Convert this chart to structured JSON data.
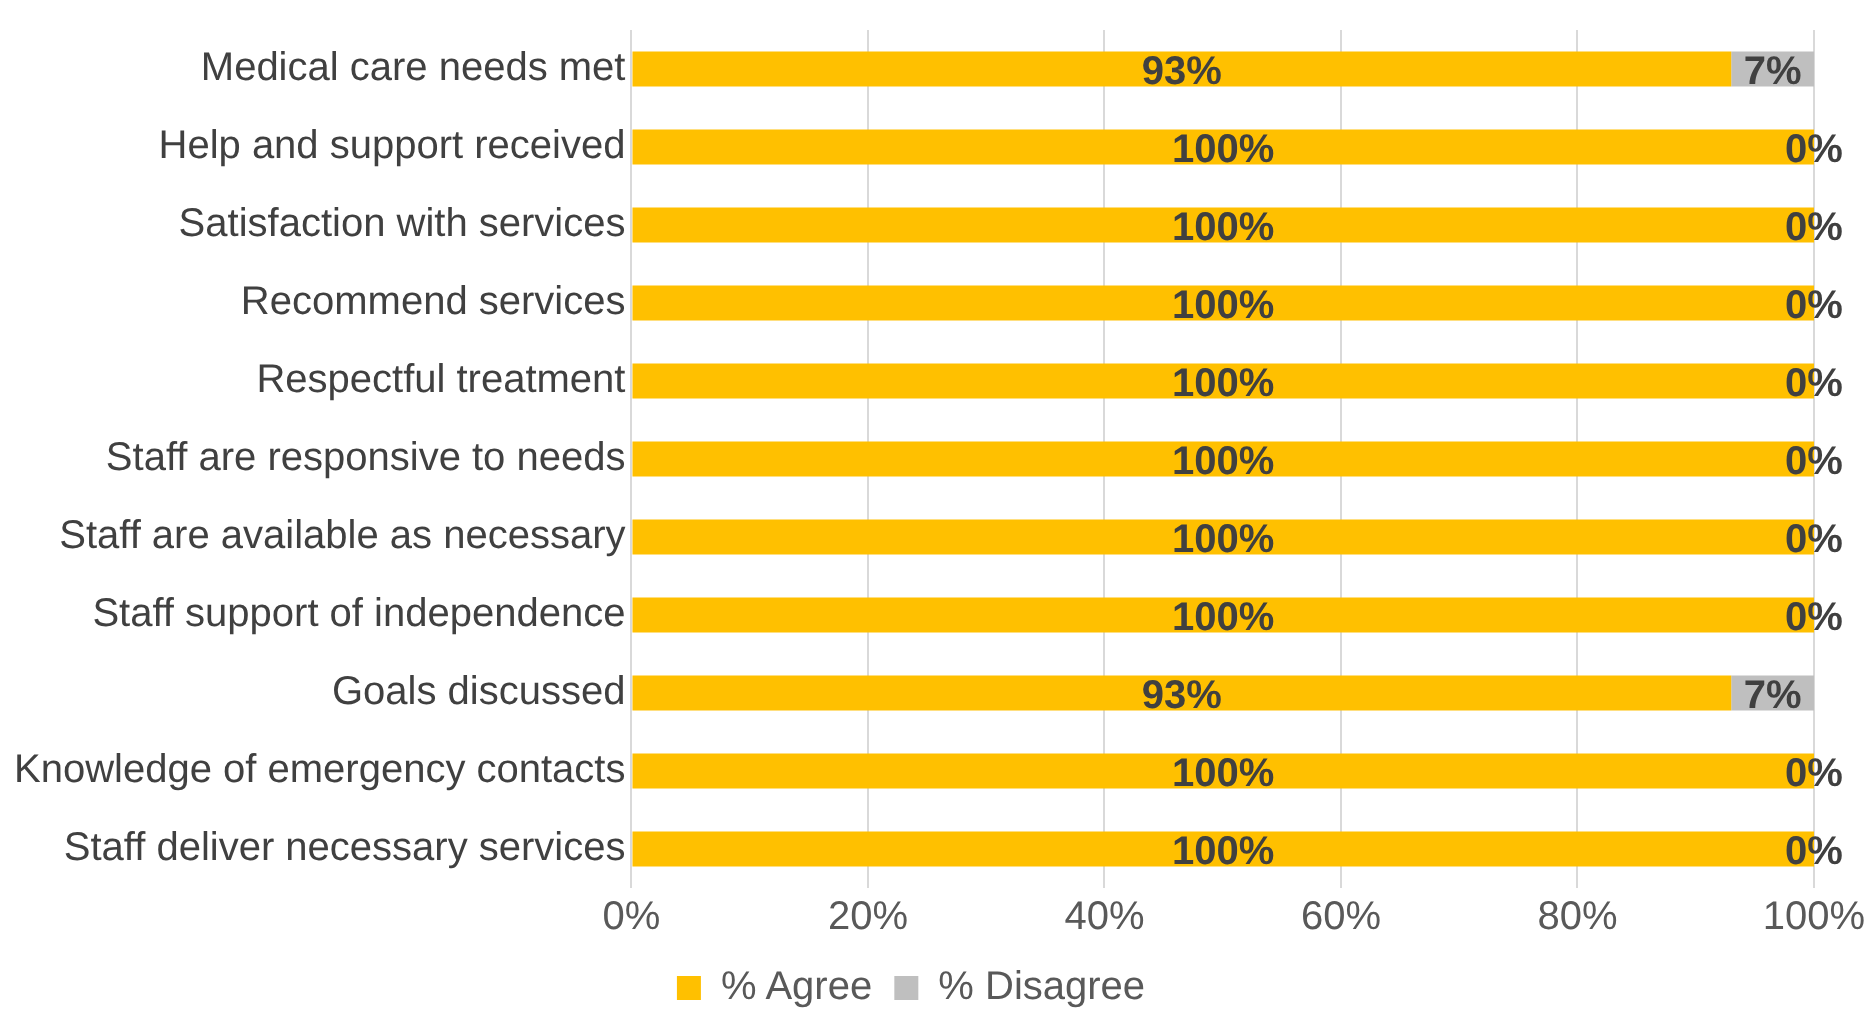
{
  "chart_data": {
    "type": "bar",
    "orientation": "horizontal",
    "stacked": true,
    "categories": [
      "Medical care needs met",
      "Help and support received",
      "Satisfaction with services",
      "Recommend services",
      "Respectful treatment",
      "Staff are responsive to needs",
      "Staff are available as necessary",
      "Staff support of independence",
      "Goals discussed",
      "Knowledge of emergency contacts",
      "Staff deliver necessary services"
    ],
    "series": [
      {
        "name": "% Agree",
        "color": "#ffc000",
        "values": [
          93,
          100,
          100,
          100,
          100,
          100,
          100,
          100,
          93,
          100,
          100
        ],
        "value_labels": [
          "93%",
          "100%",
          "100%",
          "100%",
          "100%",
          "100%",
          "100%",
          "100%",
          "93%",
          "100%",
          "100%"
        ]
      },
      {
        "name": "% Disagree",
        "color": "#bfbfbf",
        "values": [
          7,
          0,
          0,
          0,
          0,
          0,
          0,
          0,
          7,
          0,
          0
        ],
        "value_labels": [
          "7%",
          "0%",
          "0%",
          "0%",
          "0%",
          "0%",
          "0%",
          "0%",
          "7%",
          "0%",
          "0%"
        ]
      }
    ],
    "xlim": [
      0,
      100
    ],
    "xticks": [
      {
        "value": 0,
        "label": "0%"
      },
      {
        "value": 20,
        "label": "20%"
      },
      {
        "value": 40,
        "label": "40%"
      },
      {
        "value": 60,
        "label": "60%"
      },
      {
        "value": 80,
        "label": "80%"
      },
      {
        "value": 100,
        "label": "100%"
      }
    ],
    "grid": "x",
    "legend": "bottom"
  }
}
